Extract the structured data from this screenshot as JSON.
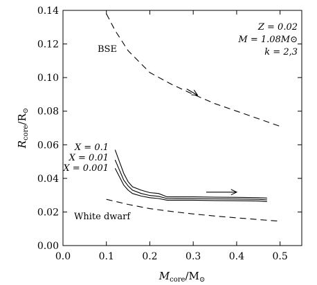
{
  "chart_data": {
    "type": "line",
    "title": "",
    "xlabel": {
      "main": "M",
      "sub": "core",
      "unit_main": "/M",
      "unit_sub": "⊙"
    },
    "ylabel": {
      "main": "R",
      "sub": "core",
      "unit_main": "/R",
      "unit_sub": "⊙"
    },
    "xlim": [
      0.0,
      0.55
    ],
    "ylim": [
      0.0,
      0.14
    ],
    "xticks": [
      0.0,
      0.1,
      0.2,
      0.3,
      0.4,
      0.5
    ],
    "xtick_labels": [
      "0.0",
      "0.1",
      "0.2",
      "0.3",
      "0.4",
      "0.5"
    ],
    "yticks": [
      0.0,
      0.02,
      0.04,
      0.06,
      0.08,
      0.1,
      0.12,
      0.14
    ],
    "ytick_labels": [
      "0.00",
      "0.02",
      "0.04",
      "0.06",
      "0.08",
      "0.10",
      "0.12",
      "0.14"
    ],
    "grid": false,
    "parameters": [
      "Z = 0.02",
      "M = 1.08M⊙",
      "k = 2,3"
    ],
    "series": [
      {
        "name": "BSE",
        "style": "dashed",
        "x": [
          0.1,
          0.12,
          0.15,
          0.2,
          0.25,
          0.3,
          0.35,
          0.4,
          0.45,
          0.5
        ],
        "y": [
          0.138,
          0.128,
          0.116,
          0.103,
          0.096,
          0.09,
          0.0845,
          0.08,
          0.0755,
          0.071
        ]
      },
      {
        "name": "White dwarf",
        "style": "dashed",
        "x": [
          0.1,
          0.15,
          0.2,
          0.25,
          0.3,
          0.35,
          0.4,
          0.45,
          0.5
        ],
        "y": [
          0.0275,
          0.0245,
          0.022,
          0.0203,
          0.0188,
          0.0176,
          0.0165,
          0.0155,
          0.0145
        ]
      },
      {
        "name": "X = 0.1",
        "style": "solid",
        "x": [
          0.12,
          0.13,
          0.14,
          0.15,
          0.16,
          0.18,
          0.2,
          0.22,
          0.24,
          0.3,
          0.35,
          0.4,
          0.45,
          0.47
        ],
        "y": [
          0.057,
          0.05,
          0.043,
          0.038,
          0.035,
          0.033,
          0.0315,
          0.031,
          0.029,
          0.029,
          0.0288,
          0.0287,
          0.0285,
          0.0283
        ]
      },
      {
        "name": "X = 0.01",
        "style": "solid",
        "x": [
          0.12,
          0.13,
          0.14,
          0.15,
          0.16,
          0.18,
          0.2,
          0.22,
          0.24,
          0.3,
          0.35,
          0.4,
          0.45,
          0.47
        ],
        "y": [
          0.051,
          0.045,
          0.039,
          0.0355,
          0.033,
          0.031,
          0.0298,
          0.0293,
          0.028,
          0.0279,
          0.0278,
          0.0277,
          0.0275,
          0.0272
        ]
      },
      {
        "name": "X = 0.001",
        "style": "solid",
        "x": [
          0.12,
          0.13,
          0.14,
          0.15,
          0.16,
          0.18,
          0.2,
          0.22,
          0.24,
          0.3,
          0.35,
          0.4,
          0.45,
          0.47
        ],
        "y": [
          0.046,
          0.041,
          0.036,
          0.033,
          0.031,
          0.0295,
          0.0285,
          0.028,
          0.027,
          0.027,
          0.0268,
          0.0267,
          0.0265,
          0.0262
        ]
      }
    ],
    "labels": {
      "bse": "BSE",
      "white_dwarf": "White dwarf",
      "x_labels": [
        "X = 0.1",
        "X = 0.01",
        "X = 0.001"
      ]
    },
    "arrows": [
      {
        "near": "BSE",
        "from": [
          0.285,
          0.0932
        ],
        "to": [
          0.31,
          0.0895
        ]
      },
      {
        "near": "X curves",
        "from": [
          0.33,
          0.0318
        ],
        "to": [
          0.4,
          0.0318
        ]
      }
    ]
  }
}
